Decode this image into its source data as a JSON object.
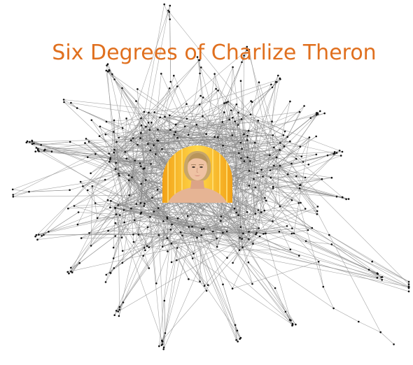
{
  "figure": {
    "title": "Six Degrees of Charlize Theron",
    "colors": {
      "title": "#e0701f",
      "edge": "#8a8a8a",
      "node": "#111111",
      "portrait_backdrop_light": "#ffd84a",
      "portrait_backdrop_dark": "#f2a116",
      "background": "#ffffff"
    },
    "center_image": "portrait-of-charlize-theron",
    "graph": {
      "layout": "radial hub network",
      "center": "Charlize Theron"
    }
  }
}
